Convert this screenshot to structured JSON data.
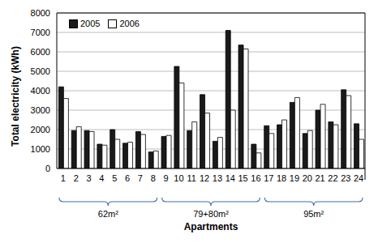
{
  "chart_data": {
    "type": "bar",
    "x_label": "Apartments",
    "y_label": "Total electricity (kWh)",
    "categories": [
      "1",
      "2",
      "3",
      "4",
      "5",
      "6",
      "7",
      "8",
      "9",
      "10",
      "11",
      "12",
      "13",
      "14",
      "15",
      "16",
      "17",
      "18",
      "19",
      "20",
      "21",
      "22",
      "23",
      "24"
    ],
    "series": [
      {
        "name": "2005",
        "color": "#1a1a1a",
        "values": [
          4200,
          1950,
          1950,
          1250,
          2000,
          1300,
          1900,
          850,
          1650,
          5250,
          1950,
          3800,
          1400,
          7100,
          6350,
          1250,
          2200,
          2250,
          3400,
          1800,
          3000,
          2400,
          4050,
          2300
        ]
      },
      {
        "name": "2006",
        "color": "#ffffff",
        "values": [
          3600,
          2150,
          1900,
          1200,
          1500,
          1350,
          1750,
          900,
          1700,
          4400,
          2400,
          2850,
          1600,
          3000,
          6150,
          800,
          1800,
          2500,
          3650,
          1950,
          3300,
          2250,
          3750,
          1500
        ]
      }
    ],
    "groups": [
      {
        "label": "62m²",
        "first": "1",
        "last": "8"
      },
      {
        "label": "79+80m²",
        "first": "9",
        "last": "16"
      },
      {
        "label": "95m²",
        "first": "17",
        "last": "24"
      }
    ],
    "ylim": [
      0,
      8000
    ],
    "yticks": [
      0,
      1000,
      2000,
      3000,
      4000,
      5000,
      6000,
      7000,
      8000
    ],
    "grid": true,
    "legend": "upper left"
  }
}
